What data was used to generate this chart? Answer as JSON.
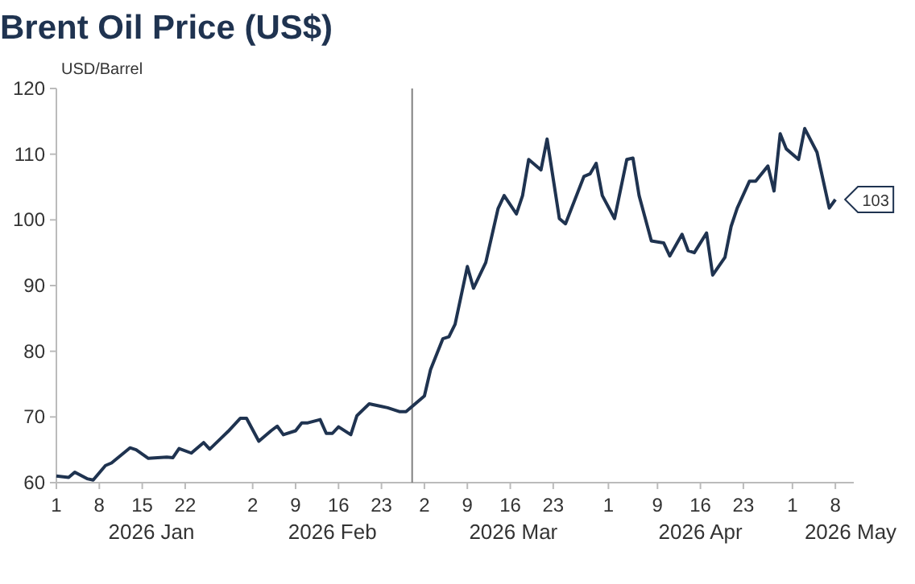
{
  "chart_data": {
    "type": "line",
    "title": "Brent Oil Price (US$)",
    "ylabel": "USD/Barrel",
    "x": [
      "2026-01-01",
      "2026-01-03",
      "2026-01-04",
      "2026-01-06",
      "2026-01-07",
      "2026-01-09",
      "2026-01-10",
      "2026-01-13",
      "2026-01-14",
      "2026-01-16",
      "2026-01-19",
      "2026-01-20",
      "2026-01-21",
      "2026-01-23",
      "2026-01-25",
      "2026-01-26",
      "2026-01-28",
      "2026-01-29",
      "2026-01-31",
      "2026-02-01",
      "2026-02-03",
      "2026-02-05",
      "2026-02-06",
      "2026-02-07",
      "2026-02-09",
      "2026-02-10",
      "2026-02-11",
      "2026-02-13",
      "2026-02-14",
      "2026-02-15",
      "2026-02-16",
      "2026-02-18",
      "2026-02-19",
      "2026-02-21",
      "2026-02-23",
      "2026-02-24",
      "2026-02-26",
      "2026-02-27",
      "2026-03-02",
      "2026-03-03",
      "2026-03-05",
      "2026-03-06",
      "2026-03-07",
      "2026-03-09",
      "2026-03-10",
      "2026-03-12",
      "2026-03-14",
      "2026-03-15",
      "2026-03-17",
      "2026-03-18",
      "2026-03-19",
      "2026-03-21",
      "2026-03-22",
      "2026-03-24",
      "2026-03-25",
      "2026-03-28",
      "2026-03-29",
      "2026-03-30",
      "2026-03-31",
      "2026-04-02",
      "2026-04-04",
      "2026-04-05",
      "2026-04-06",
      "2026-04-08",
      "2026-04-10",
      "2026-04-11",
      "2026-04-13",
      "2026-04-14",
      "2026-04-15",
      "2026-04-17",
      "2026-04-18",
      "2026-04-20",
      "2026-04-21",
      "2026-04-22",
      "2026-04-24",
      "2026-04-25",
      "2026-04-27",
      "2026-04-28",
      "2026-04-29",
      "2026-04-30",
      "2026-05-02",
      "2026-05-03",
      "2026-05-05",
      "2026-05-07",
      "2026-05-08"
    ],
    "series": [
      {
        "color": "#1f3350",
        "values": [
          61.0,
          60.8,
          61.6,
          60.6,
          60.4,
          62.6,
          63.0,
          65.3,
          65.0,
          63.7,
          63.9,
          63.8,
          65.2,
          64.5,
          66.1,
          65.1,
          66.9,
          67.8,
          69.8,
          69.8,
          66.3,
          67.9,
          68.6,
          67.3,
          67.9,
          69.1,
          69.1,
          69.6,
          67.5,
          67.5,
          68.5,
          67.3,
          70.2,
          72.0,
          71.6,
          71.4,
          70.8,
          70.8,
          73.2,
          77.2,
          81.9,
          82.2,
          84.1,
          92.9,
          89.6,
          93.5,
          101.7,
          103.7,
          100.9,
          103.7,
          109.2,
          107.6,
          112.3,
          100.2,
          99.4,
          106.6,
          107.0,
          108.6,
          103.7,
          100.2,
          109.2,
          109.4,
          103.7,
          96.8,
          96.5,
          94.5,
          97.8,
          95.3,
          95.0,
          98.0,
          91.6,
          94.3,
          99.0,
          101.8,
          105.9,
          105.9,
          108.2,
          104.4,
          113.1,
          110.8,
          109.2,
          113.9,
          110.3,
          101.8,
          103.1
        ]
      }
    ],
    "xlim": [
      "2026-01-01",
      "2026-05-11"
    ],
    "xticks": [
      {
        "value": "2026-01-01",
        "label": "1"
      },
      {
        "value": "2026-01-08",
        "label": "8"
      },
      {
        "value": "2026-01-15",
        "label": "15"
      },
      {
        "value": "2026-01-22",
        "label": "22"
      },
      {
        "value": "2026-02-02",
        "label": "2"
      },
      {
        "value": "2026-02-09",
        "label": "9"
      },
      {
        "value": "2026-02-16",
        "label": "16"
      },
      {
        "value": "2026-02-23",
        "label": "23"
      },
      {
        "value": "2026-03-02",
        "label": "2"
      },
      {
        "value": "2026-03-09",
        "label": "9"
      },
      {
        "value": "2026-03-16",
        "label": "16"
      },
      {
        "value": "2026-03-23",
        "label": "23"
      },
      {
        "value": "2026-04-01",
        "label": "1"
      },
      {
        "value": "2026-04-09",
        "label": "9"
      },
      {
        "value": "2026-04-16",
        "label": "16"
      },
      {
        "value": "2026-04-23",
        "label": "23"
      },
      {
        "value": "2026-05-01",
        "label": "1"
      },
      {
        "value": "2026-05-08",
        "label": "8"
      }
    ],
    "ylim": [
      60,
      120
    ],
    "yticks": [
      60,
      70,
      80,
      90,
      100,
      110,
      120
    ],
    "ref_lines": [
      {
        "axis": "x",
        "value": "2026-02-28",
        "color": "#808080"
      }
    ],
    "annotations": [
      "2026 Jan",
      "2026 Feb",
      "2026 Mar",
      "2026 Apr",
      "2026 May",
      {
        "text": "103",
        "x": "2026-05-08",
        "y": 103.1
      }
    ],
    "grid": false
  }
}
